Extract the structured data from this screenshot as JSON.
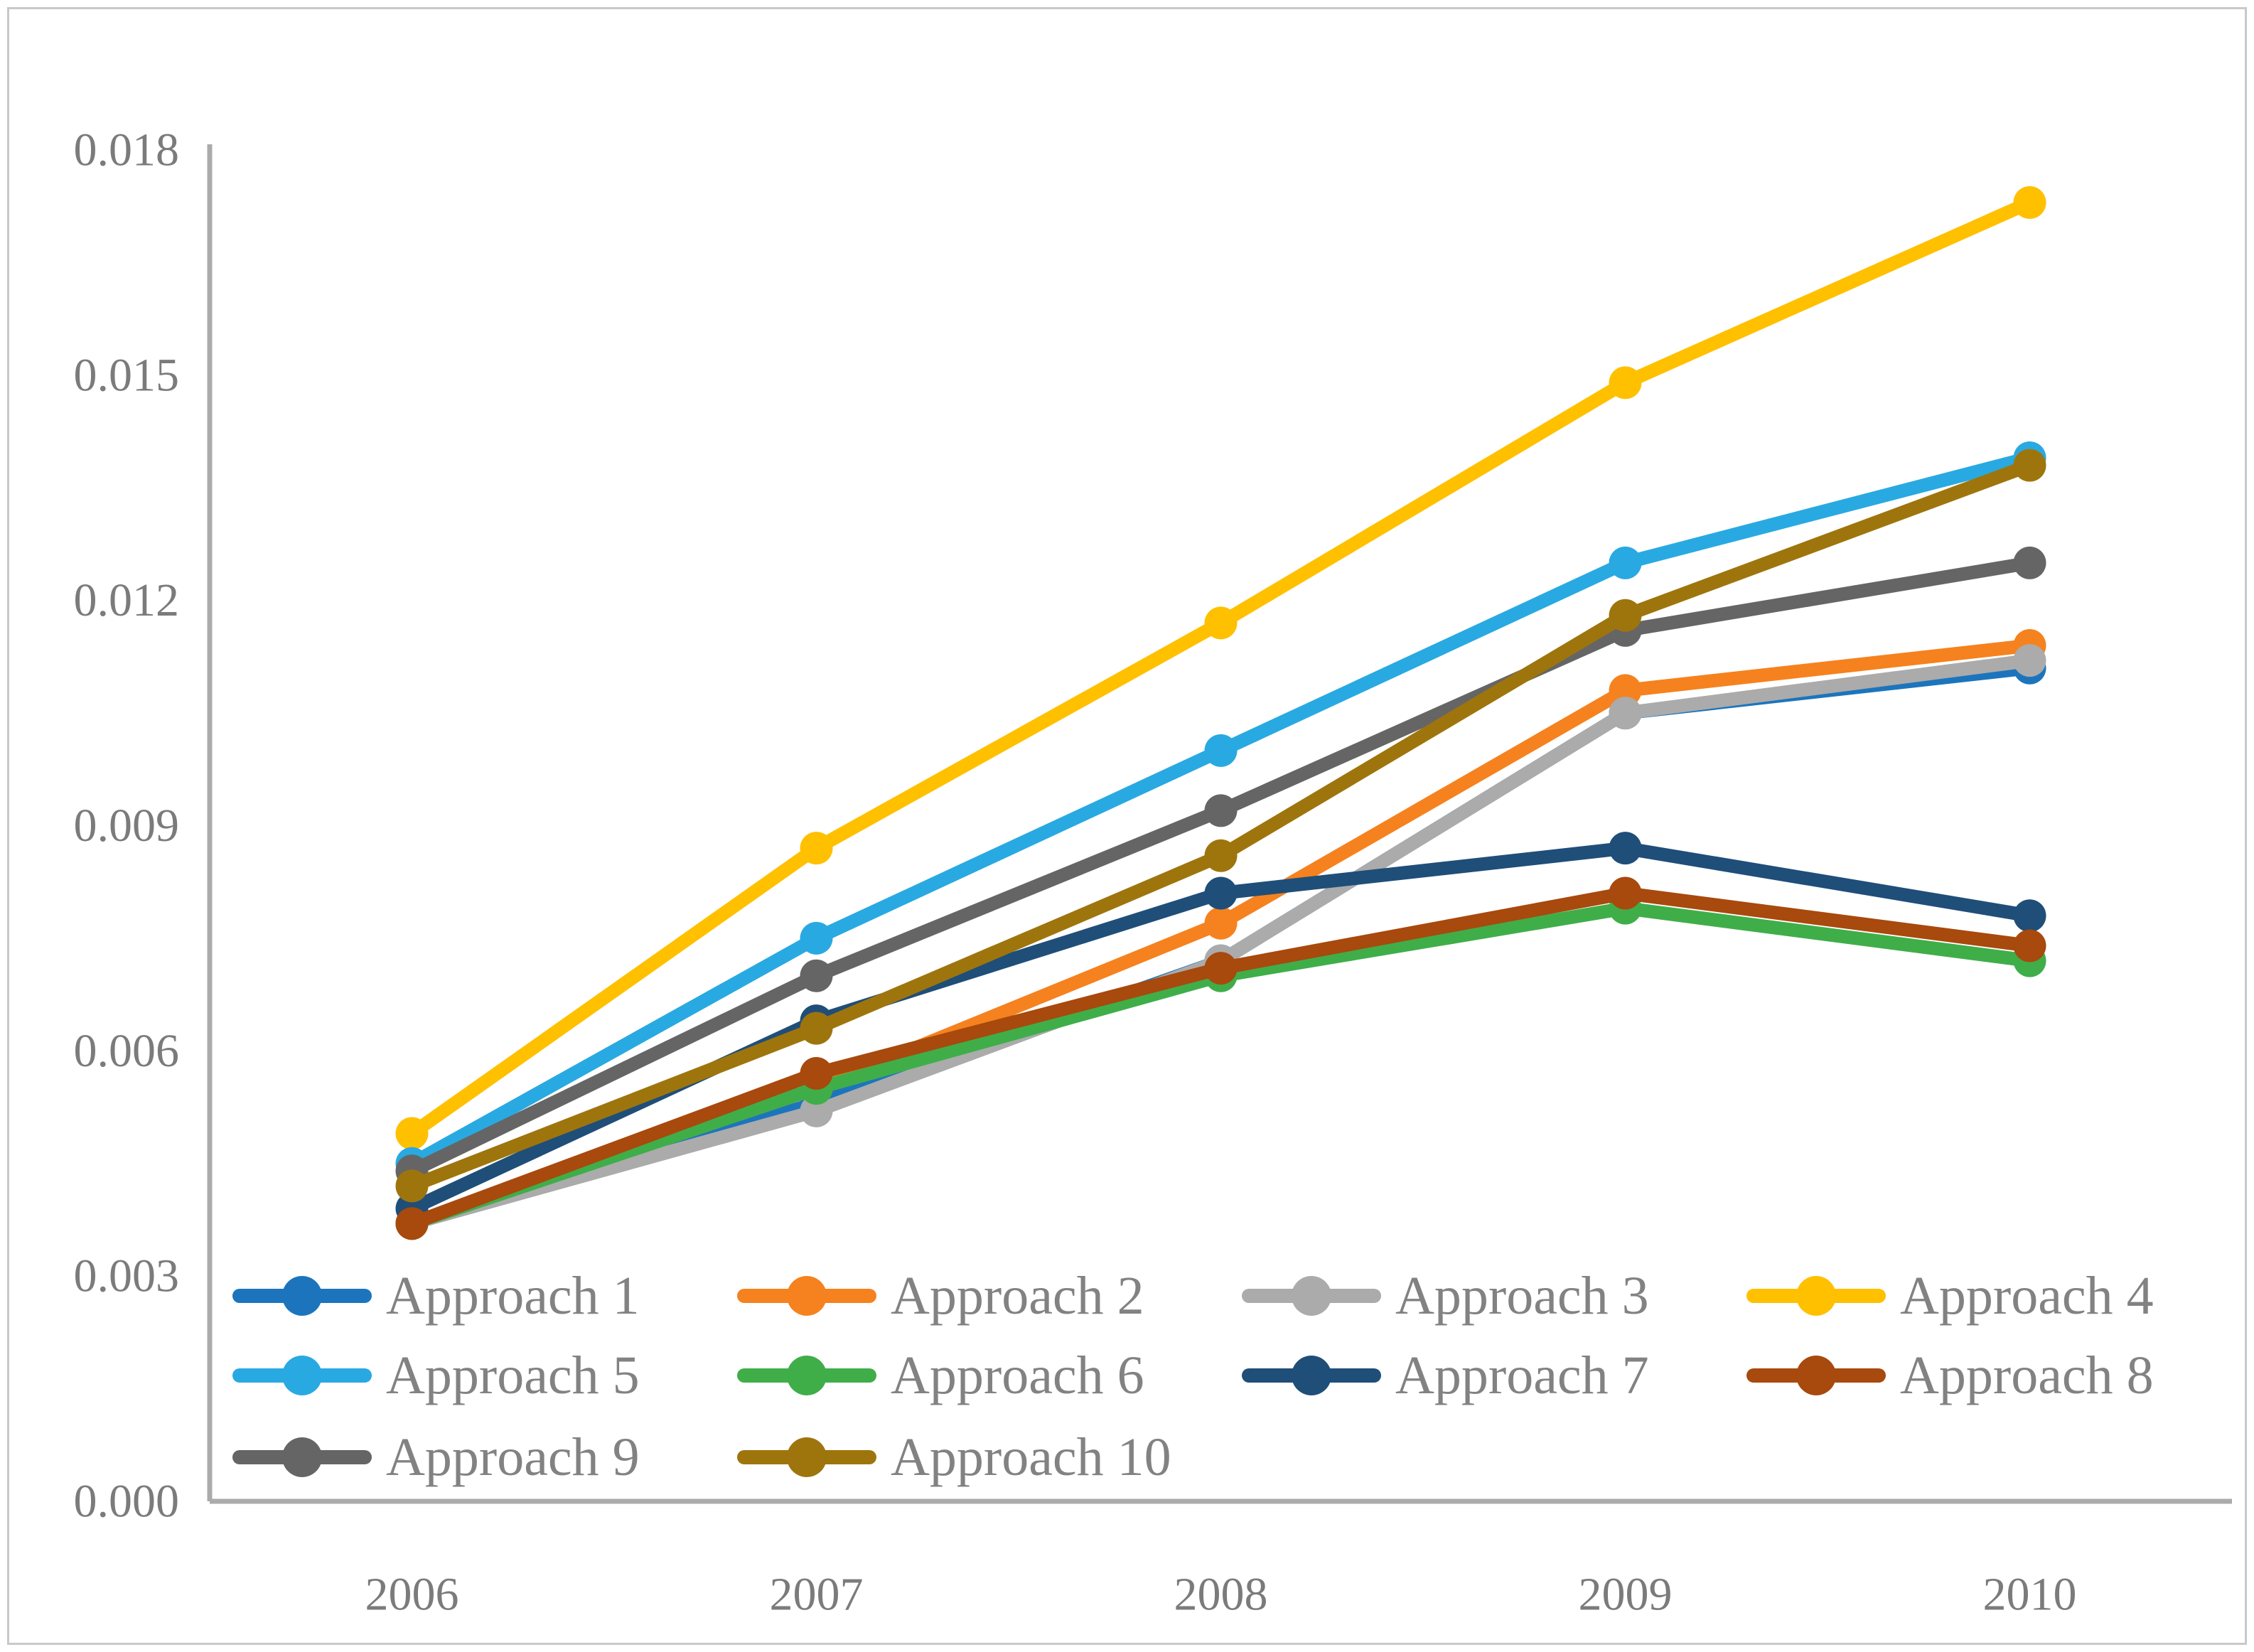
{
  "figure": {
    "background": "#ffffff",
    "border_color": "#c9c9c9"
  },
  "chart_data": {
    "type": "line",
    "title": "",
    "xlabel": "",
    "ylabel": "",
    "x": [
      2006,
      2007,
      2008,
      2009,
      2010
    ],
    "x_tick_labels": [
      "2006",
      "2007",
      "2008",
      "2009",
      "2010"
    ],
    "y_tick_labels": [
      "0.000",
      "0.003",
      "0.006",
      "0.009",
      "0.012",
      "0.015",
      "0.018"
    ],
    "ylim": [
      0,
      0.018
    ],
    "y_tick_step": 0.003,
    "grid": false,
    "legend_position": "inside-bottom-left",
    "axis_color": "#ababab",
    "tick_label_color": "#7b7b7b",
    "legend_text_color": "#828282",
    "marker_style": "circle",
    "series": [
      {
        "name": "Approach 1",
        "color": "#1c75bc",
        "values": [
          0.0037,
          0.0053,
          0.0072,
          0.0105,
          0.0111
        ]
      },
      {
        "name": "Approach 2",
        "color": "#f5821f",
        "values": [
          0.0037,
          0.0055,
          0.0077,
          0.0108,
          0.0114
        ]
      },
      {
        "name": "Approach 3",
        "color": "#ababab",
        "values": [
          0.0037,
          0.0052,
          0.0072,
          0.0105,
          0.0112
        ]
      },
      {
        "name": "Approach 4",
        "color": "#ffc000",
        "values": [
          0.0049,
          0.0087,
          0.0117,
          0.0149,
          0.0173
        ]
      },
      {
        "name": "Approach 5",
        "color": "#29a9e1",
        "values": [
          0.0045,
          0.0075,
          0.01,
          0.0125,
          0.0139
        ]
      },
      {
        "name": "Approach 6",
        "color": "#3fae49",
        "values": [
          0.0037,
          0.0055,
          0.007,
          0.0079,
          0.0072
        ]
      },
      {
        "name": "Approach 7",
        "color": "#1f4e79",
        "values": [
          0.0039,
          0.0064,
          0.0081,
          0.0087,
          0.0078
        ]
      },
      {
        "name": "Approach 8",
        "color": "#a8490d",
        "values": [
          0.0037,
          0.0057,
          0.0071,
          0.0081,
          0.0074
        ]
      },
      {
        "name": "Approach 9",
        "color": "#656565",
        "values": [
          0.0044,
          0.007,
          0.0092,
          0.0116,
          0.0125
        ]
      },
      {
        "name": "Approach 10",
        "color": "#9e750d",
        "values": [
          0.0042,
          0.0063,
          0.0086,
          0.0118,
          0.0138
        ]
      }
    ]
  }
}
